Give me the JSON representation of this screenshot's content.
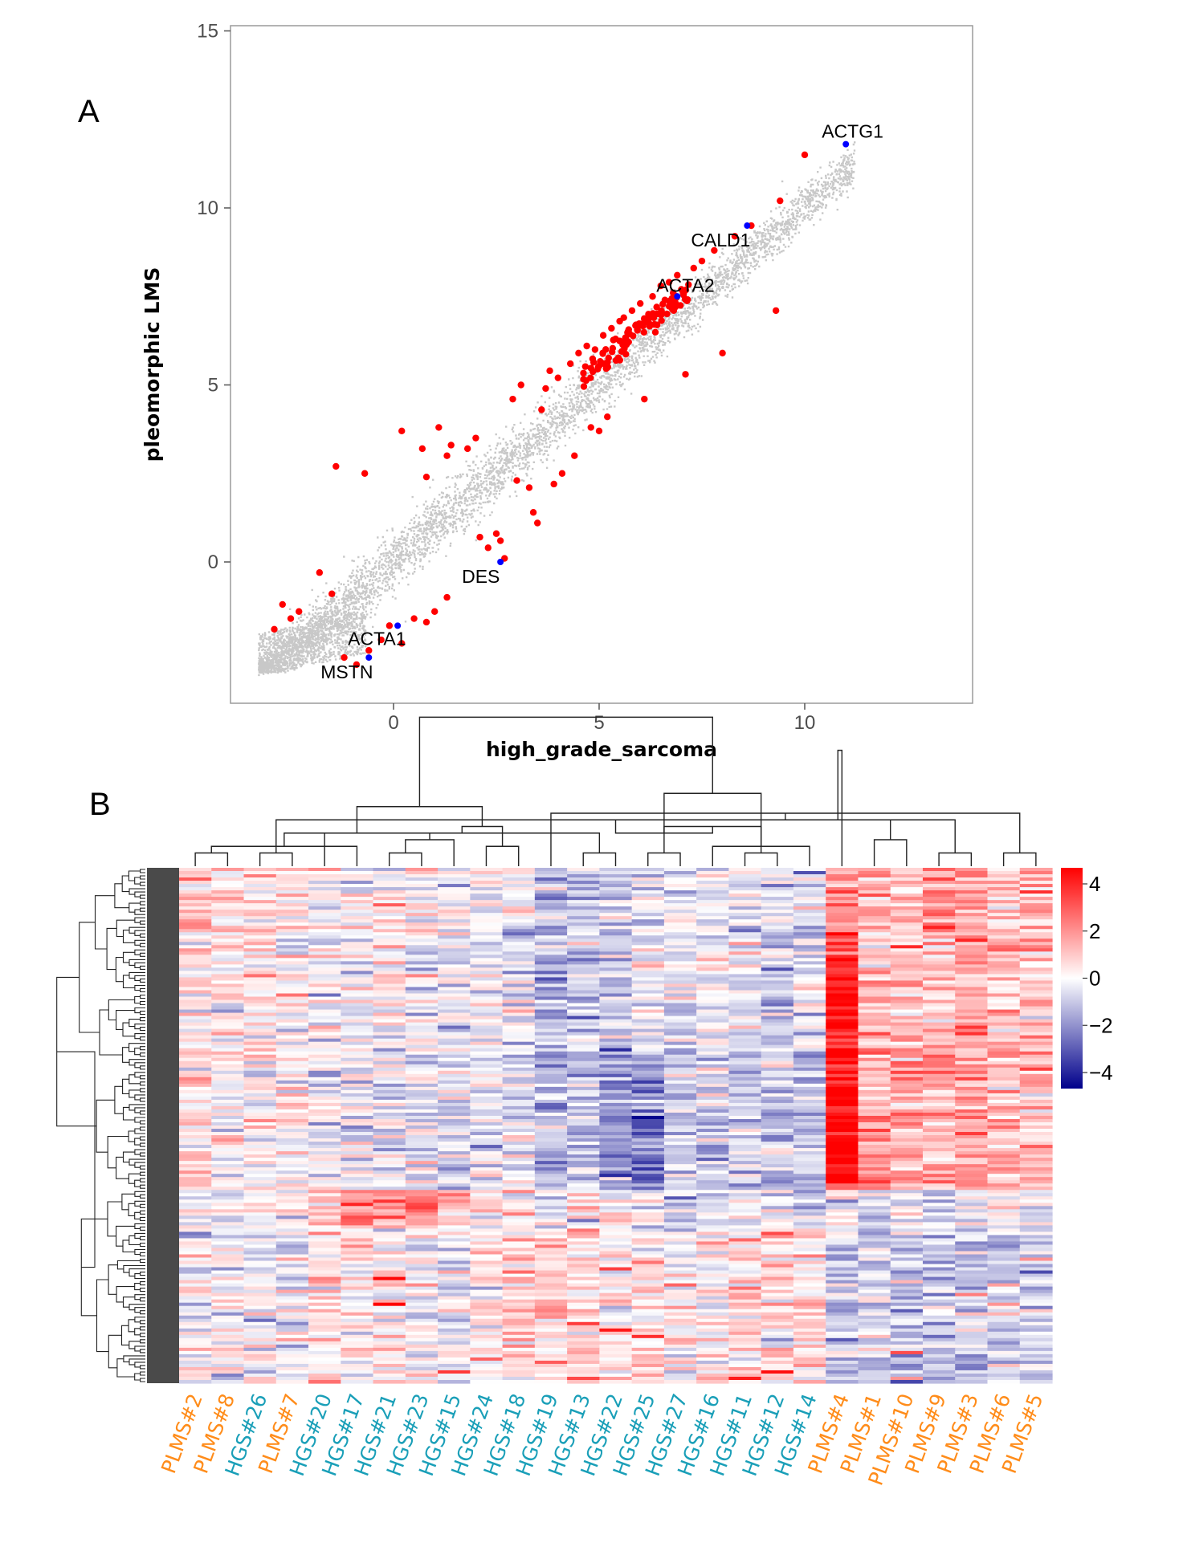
{
  "chart_data": [
    {
      "panel": "A",
      "type": "scatter",
      "xlabel": "high_grade_sarcoma",
      "ylabel": "pleomorphic LMS",
      "xlim": [
        -4,
        14
      ],
      "ylim": [
        -4,
        15
      ],
      "xticks": [
        0,
        5,
        10
      ],
      "yticks": [
        0,
        5,
        10,
        15
      ],
      "background_points": "dense grey cloud of genes along the diagonal",
      "colors": {
        "background": "#c8c8c8",
        "highlight": "#ff0000",
        "marker": "#0000ff"
      },
      "highlighted_genes": [
        {
          "x": -2.9,
          "y": -1.9
        },
        {
          "x": -2.7,
          "y": -1.2
        },
        {
          "x": -2.5,
          "y": -1.6
        },
        {
          "x": -2.3,
          "y": -1.4
        },
        {
          "x": -1.8,
          "y": -0.3
        },
        {
          "x": -1.5,
          "y": -0.9
        },
        {
          "x": -1.4,
          "y": 2.7
        },
        {
          "x": -0.7,
          "y": 2.5
        },
        {
          "x": -1.2,
          "y": -2.7
        },
        {
          "x": -0.9,
          "y": -2.9
        },
        {
          "x": -0.6,
          "y": -2.5
        },
        {
          "x": -0.3,
          "y": -2.2
        },
        {
          "x": -0.1,
          "y": -1.8
        },
        {
          "x": 0.2,
          "y": -2.3
        },
        {
          "x": 0.5,
          "y": -1.6
        },
        {
          "x": 0.8,
          "y": -1.7
        },
        {
          "x": 1.0,
          "y": -1.4
        },
        {
          "x": 1.3,
          "y": -1.0
        },
        {
          "x": 0.2,
          "y": 3.7
        },
        {
          "x": 0.7,
          "y": 3.2
        },
        {
          "x": 0.8,
          "y": 2.4
        },
        {
          "x": 1.1,
          "y": 3.8
        },
        {
          "x": 1.3,
          "y": 3.0
        },
        {
          "x": 1.4,
          "y": 3.3
        },
        {
          "x": 1.8,
          "y": 3.2
        },
        {
          "x": 2.0,
          "y": 3.5
        },
        {
          "x": 2.1,
          "y": 0.7
        },
        {
          "x": 2.3,
          "y": 0.4
        },
        {
          "x": 2.5,
          "y": 0.8
        },
        {
          "x": 2.6,
          "y": 0.6
        },
        {
          "x": 2.7,
          "y": 0.1
        },
        {
          "x": 2.9,
          "y": 4.6
        },
        {
          "x": 3.0,
          "y": 2.3
        },
        {
          "x": 3.1,
          "y": 5.0
        },
        {
          "x": 3.3,
          "y": 2.1
        },
        {
          "x": 3.4,
          "y": 1.4
        },
        {
          "x": 3.5,
          "y": 1.1
        },
        {
          "x": 3.6,
          "y": 4.3
        },
        {
          "x": 3.7,
          "y": 4.9
        },
        {
          "x": 3.8,
          "y": 5.4
        },
        {
          "x": 3.9,
          "y": 2.2
        },
        {
          "x": 4.0,
          "y": 5.2
        },
        {
          "x": 4.1,
          "y": 2.5
        },
        {
          "x": 4.3,
          "y": 5.6
        },
        {
          "x": 4.4,
          "y": 3.0
        },
        {
          "x": 4.5,
          "y": 5.9
        },
        {
          "x": 4.7,
          "y": 6.1
        },
        {
          "x": 4.8,
          "y": 3.8
        },
        {
          "x": 4.9,
          "y": 6.0
        },
        {
          "x": 5.0,
          "y": 3.7
        },
        {
          "x": 5.1,
          "y": 6.4
        },
        {
          "x": 5.2,
          "y": 4.1
        },
        {
          "x": 5.3,
          "y": 6.6
        },
        {
          "x": 5.4,
          "y": 6.3
        },
        {
          "x": 5.5,
          "y": 6.8
        },
        {
          "x": 5.6,
          "y": 6.9
        },
        {
          "x": 5.7,
          "y": 6.5
        },
        {
          "x": 5.8,
          "y": 7.1
        },
        {
          "x": 5.9,
          "y": 6.7
        },
        {
          "x": 6.0,
          "y": 7.3
        },
        {
          "x": 6.1,
          "y": 4.6
        },
        {
          "x": 6.2,
          "y": 7.0
        },
        {
          "x": 6.3,
          "y": 7.5
        },
        {
          "x": 6.4,
          "y": 7.2
        },
        {
          "x": 6.5,
          "y": 7.8
        },
        {
          "x": 6.6,
          "y": 7.4
        },
        {
          "x": 6.7,
          "y": 7.9
        },
        {
          "x": 6.8,
          "y": 7.6
        },
        {
          "x": 6.9,
          "y": 8.1
        },
        {
          "x": 7.0,
          "y": 7.7
        },
        {
          "x": 7.1,
          "y": 5.3
        },
        {
          "x": 7.3,
          "y": 8.3
        },
        {
          "x": 7.5,
          "y": 8.5
        },
        {
          "x": 7.8,
          "y": 8.8
        },
        {
          "x": 8.0,
          "y": 5.9
        },
        {
          "x": 8.3,
          "y": 9.2
        },
        {
          "x": 8.7,
          "y": 9.5
        },
        {
          "x": 9.3,
          "y": 7.1
        },
        {
          "x": 9.4,
          "y": 10.2
        },
        {
          "x": 10.0,
          "y": 11.5
        }
      ],
      "labeled_genes": [
        {
          "label": "ACTG1",
          "x": 11.0,
          "y": 11.8
        },
        {
          "label": "CALD1",
          "x": 8.6,
          "y": 9.5
        },
        {
          "label": "ACTA2",
          "x": 6.9,
          "y": 7.5
        },
        {
          "label": "DES",
          "x": 2.6,
          "y": 0.0
        },
        {
          "label": "ACTA1",
          "x": 0.1,
          "y": -1.8
        },
        {
          "label": "MSTN",
          "x": -0.6,
          "y": -2.7
        }
      ]
    },
    {
      "panel": "B",
      "type": "heatmap",
      "colorbar": {
        "ticks": [
          "4",
          "2",
          "0",
          "−2",
          "−4"
        ],
        "values": [
          4,
          2,
          0,
          -2,
          -4
        ],
        "low": "#00008b",
        "mid": "#ffffff",
        "high": "#ff0000"
      },
      "group_colors": {
        "PLMS": "#ff8c1a",
        "HGS": "#1a9fb8"
      },
      "samples": [
        {
          "label": "PLMS#2",
          "group": "PLMS"
        },
        {
          "label": "PLMS#8",
          "group": "PLMS"
        },
        {
          "label": "HGS#26",
          "group": "HGS"
        },
        {
          "label": "PLMS#7",
          "group": "PLMS"
        },
        {
          "label": "HGS#20",
          "group": "HGS"
        },
        {
          "label": "HGS#17",
          "group": "HGS"
        },
        {
          "label": "HGS#21",
          "group": "HGS"
        },
        {
          "label": "HGS#23",
          "group": "HGS"
        },
        {
          "label": "HGS#15",
          "group": "HGS"
        },
        {
          "label": "HGS#24",
          "group": "HGS"
        },
        {
          "label": "HGS#18",
          "group": "HGS"
        },
        {
          "label": "HGS#19",
          "group": "HGS"
        },
        {
          "label": "HGS#13",
          "group": "HGS"
        },
        {
          "label": "HGS#22",
          "group": "HGS"
        },
        {
          "label": "HGS#25",
          "group": "HGS"
        },
        {
          "label": "HGS#27",
          "group": "HGS"
        },
        {
          "label": "HGS#16",
          "group": "HGS"
        },
        {
          "label": "HGS#11",
          "group": "HGS"
        },
        {
          "label": "HGS#12",
          "group": "HGS"
        },
        {
          "label": "HGS#14",
          "group": "HGS"
        },
        {
          "label": "PLMS#4",
          "group": "PLMS"
        },
        {
          "label": "PLMS#1",
          "group": "PLMS"
        },
        {
          "label": "PLMS#10",
          "group": "PLMS"
        },
        {
          "label": "PLMS#9",
          "group": "PLMS"
        },
        {
          "label": "PLMS#3",
          "group": "PLMS"
        },
        {
          "label": "PLMS#6",
          "group": "PLMS"
        },
        {
          "label": "PLMS#5",
          "group": "PLMS"
        }
      ],
      "column_dendrogram": [
        {
          "a": 0,
          "b": 1,
          "h": 1
        },
        {
          "a": 2,
          "b": 3,
          "h": 1
        },
        {
          "a": 6,
          "b": 7,
          "h": 1
        },
        {
          "a": 12,
          "b": 13,
          "h": 1
        },
        {
          "a": 14,
          "b": 15,
          "h": 1
        },
        {
          "a": 17,
          "b": 18,
          "h": 1
        },
        {
          "a": 23,
          "b": 24,
          "h": 1
        },
        {
          "a": 25,
          "b": 26,
          "h": 1
        },
        {
          "a": 5,
          "b": 27,
          "h": 1.5
        },
        {
          "a": 29,
          "b": 8,
          "h": 2
        },
        {
          "a": 4,
          "b": 30,
          "h": 2.5
        },
        {
          "a": 9,
          "b": 10,
          "h": 1.5
        },
        {
          "a": 31,
          "b": 32,
          "h": 3
        },
        {
          "a": 28,
          "b": 33,
          "h": 3.5
        },
        {
          "a": 11,
          "b": 34,
          "h": 4
        },
        {
          "a": 21,
          "b": 22,
          "h": 2
        },
        {
          "a": 35,
          "b": 36,
          "h": 2.5
        },
        {
          "a": 37,
          "b": 38,
          "h": 3
        },
        {
          "a": 19,
          "b": 16,
          "h": 1.5
        },
        {
          "a": 39,
          "b": 40,
          "h": 2.5
        },
        {
          "a": 41,
          "b": 42,
          "h": 3.5
        },
        {
          "a": 43,
          "b": 44,
          "h": 4.5
        },
        {
          "a": 45,
          "b": 46,
          "h": 5.5
        },
        {
          "a": 20,
          "b": 47,
          "h": 7
        },
        {
          "a": 48,
          "b": 49,
          "h": 9
        }
      ],
      "row_count": 160,
      "row_clusters": [
        {
          "rows": [
            0,
            20
          ],
          "values": [
            1.2,
            0.5,
            0.3,
            0.4,
            0.1,
            0.0,
            0.1,
            0.0,
            -0.1,
            0.0,
            -0.2,
            -1.2,
            -0.9,
            -0.8,
            -0.4,
            -0.3,
            -0.2,
            -0.5,
            -0.4,
            -0.6,
            1.6,
            1.0,
            1.2,
            1.9,
            1.5,
            0.9,
            1.3
          ]
        },
        {
          "rows": [
            20,
            56
          ],
          "values": [
            0.4,
            0.2,
            0.2,
            0.3,
            0.0,
            -0.2,
            0.1,
            -0.1,
            -0.2,
            -0.3,
            -0.3,
            -1.0,
            -0.8,
            -0.8,
            -0.3,
            -0.6,
            -0.3,
            -0.3,
            -1.0,
            -0.5,
            3.5,
            1.0,
            1.0,
            0.9,
            1.2,
            0.8,
            1.0
          ]
        },
        {
          "rows": [
            56,
            100
          ],
          "values": [
            0.3,
            0.0,
            0.1,
            0.2,
            -0.3,
            -0.2,
            -0.3,
            -0.3,
            -0.4,
            -0.3,
            -0.3,
            -0.8,
            -0.9,
            -1.8,
            -1.9,
            -0.8,
            -0.7,
            -0.6,
            -0.9,
            -0.8,
            3.8,
            1.5,
            1.4,
            1.2,
            1.4,
            1.0,
            1.1
          ]
        },
        {
          "rows": [
            100,
            112
          ],
          "values": [
            0.0,
            -0.1,
            0.0,
            0.1,
            0.6,
            1.3,
            1.6,
            1.5,
            1.2,
            0.3,
            0.1,
            -0.6,
            -0.3,
            0.1,
            -0.2,
            -0.9,
            -0.8,
            -0.4,
            -0.3,
            -0.6,
            -0.4,
            -0.3,
            -0.3,
            -0.5,
            -0.4,
            -0.3,
            -0.4
          ]
        },
        {
          "rows": [
            112,
            160
          ],
          "values": [
            -0.3,
            -0.2,
            -0.2,
            -0.3,
            0.4,
            0.3,
            0.2,
            0.0,
            -0.2,
            0.4,
            0.5,
            0.8,
            0.6,
            0.3,
            0.6,
            0.2,
            0.0,
            0.6,
            0.6,
            0.5,
            -0.7,
            -0.8,
            -0.7,
            -0.9,
            -0.8,
            -0.9,
            -0.8
          ]
        }
      ]
    }
  ]
}
